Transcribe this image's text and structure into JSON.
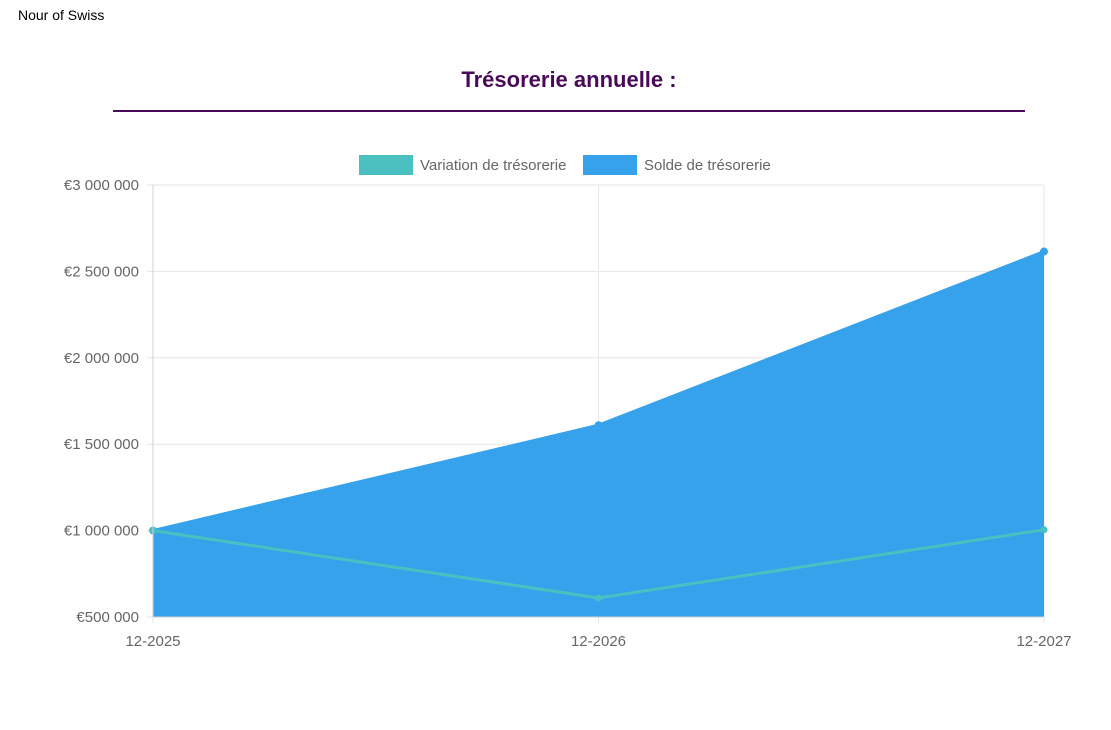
{
  "header": {
    "company_name": "Nour of Swiss"
  },
  "chart_data": {
    "type": "area",
    "title": "Trésorerie annuelle :",
    "categories": [
      "12-2025",
      "12-2026",
      "12-2027"
    ],
    "series": [
      {
        "name": "Variation de trésorerie",
        "type": "line",
        "color": "#4bc0c0",
        "values": [
          1000000,
          610000,
          1005000
        ]
      },
      {
        "name": "Solde de trésorerie",
        "type": "area",
        "color": "#36a2eb",
        "values": [
          1000000,
          1610000,
          2615000
        ]
      }
    ],
    "y_ticks": [
      "€3 000 000",
      "€2 500 000",
      "€2 000 000",
      "€1 500 000",
      "€1 000 000",
      "€500 000"
    ],
    "y_tick_values": [
      3000000,
      2500000,
      2000000,
      1500000,
      1000000,
      500000
    ],
    "ylim": [
      500000,
      3000000
    ],
    "grid": true,
    "legend_position": "top"
  }
}
